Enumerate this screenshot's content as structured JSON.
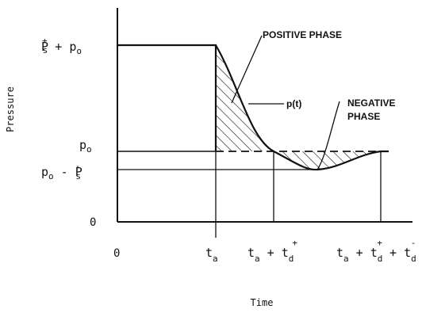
{
  "diagram": {
    "y_axis_label": "Pressure",
    "x_axis_label": "Time",
    "y_ticks": {
      "peak": {
        "base": "P",
        "sup": "+",
        "sub": "s",
        "rest": " + p",
        "rest_sub": "o"
      },
      "ambient": {
        "base": "p",
        "sub": "o"
      },
      "min": {
        "base": "p",
        "sub": "o",
        "mid": " - P",
        "mid_sup": "-",
        "mid_sub": "s"
      },
      "zero": "0"
    },
    "x_ticks": {
      "zero": "0",
      "t1": {
        "base": "t",
        "sub": "a"
      },
      "t2": {
        "base": "t",
        "sub": "a",
        "mid": " + t",
        "mid_sub": "d",
        "mid_sup": "+"
      },
      "t3": {
        "base": "t",
        "sub": "a",
        "mid": " + t",
        "mid_sub": "d",
        "mid_sup": "+",
        "tail": " + t",
        "tail_sub": "d",
        "tail_sup": "-"
      }
    },
    "annotations": {
      "positive_phase": "POSITIVE PHASE",
      "curve": "p(t)",
      "negative_phase_line1": "NEGATIVE",
      "negative_phase_line2": "PHASE"
    }
  }
}
